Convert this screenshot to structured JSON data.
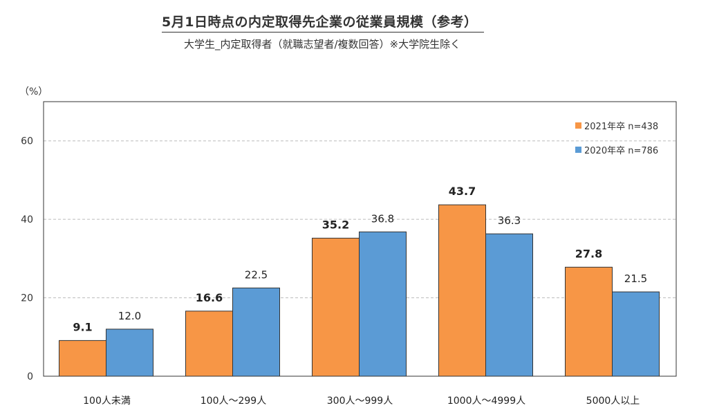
{
  "chart_data": {
    "type": "bar",
    "title": "5月1日時点の内定取得先企業の従業員規模（参考）",
    "subtitle": "大学生_内定取得者（就職志望者/複数回答）※大学院生除く",
    "ylabel": "（%）",
    "ylim": [
      0,
      70
    ],
    "yticks": [
      0,
      20,
      40,
      60
    ],
    "grid": true,
    "legend_position": "top-right",
    "categories": [
      "100人未満",
      "100人～299人",
      "300人～999人",
      "1000人～4999人",
      "5000人以上"
    ],
    "series": [
      {
        "name": "2021年卒 n=438",
        "values": [
          9.1,
          16.6,
          35.2,
          43.7,
          27.8
        ],
        "color": "#F79646",
        "labels_bold": true
      },
      {
        "name": "2020年卒 n=786",
        "values": [
          12.0,
          22.5,
          36.8,
          36.3,
          21.5
        ],
        "color": "#5B9BD5",
        "labels_bold": false
      }
    ]
  }
}
